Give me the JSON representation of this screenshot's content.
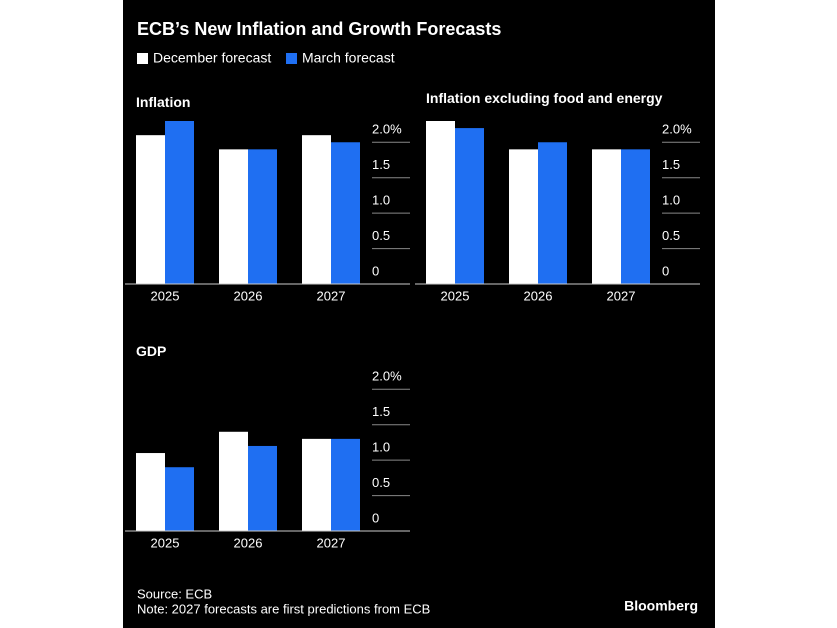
{
  "title": "ECB’s New Inflation and Growth Forecasts",
  "source": "Source: ECB",
  "note": "Note: 2027 forecasts are first predictions from ECB",
  "brand": "Bloomberg",
  "chart_data": [
    {
      "type": "bar",
      "title": "Inflation",
      "categories": [
        "2025",
        "2026",
        "2027"
      ],
      "series": [
        {
          "name": "December forecast",
          "color": "#ffffff",
          "values": [
            2.1,
            1.9,
            2.1
          ]
        },
        {
          "name": "March forecast",
          "color": "#1f6ff2",
          "values": [
            2.3,
            1.9,
            2.0
          ]
        }
      ],
      "ylim": [
        0,
        2.3
      ],
      "yticks": [
        0,
        0.5,
        {
          "value": 1,
          "label": "1.0"
        },
        1.5,
        {
          "value": 2,
          "label": "2.0%"
        }
      ]
    },
    {
      "type": "bar",
      "title": "Inflation excluding food and energy",
      "categories": [
        "2025",
        "2026",
        "2027"
      ],
      "series": [
        {
          "name": "December forecast",
          "color": "#ffffff",
          "values": [
            2.3,
            1.9,
            1.9
          ]
        },
        {
          "name": "March forecast",
          "color": "#1f6ff2",
          "values": [
            2.2,
            2.0,
            1.9
          ]
        }
      ],
      "ylim": [
        0,
        2.3
      ],
      "yticks": [
        0,
        0.5,
        {
          "value": 1,
          "label": "1.0"
        },
        1.5,
        {
          "value": 2,
          "label": "2.0%"
        }
      ]
    },
    {
      "type": "bar",
      "title": "GDP",
      "categories": [
        "2025",
        "2026",
        "2027"
      ],
      "series": [
        {
          "name": "December forecast",
          "color": "#ffffff",
          "values": [
            1.1,
            1.4,
            1.3
          ]
        },
        {
          "name": "March forecast",
          "color": "#1f6ff2",
          "values": [
            0.9,
            1.2,
            1.3
          ]
        }
      ],
      "ylim": [
        0,
        2.3
      ],
      "yticks": [
        0,
        0.5,
        {
          "value": 1,
          "label": "1.0"
        },
        1.5,
        {
          "value": 2,
          "label": "2.0%"
        }
      ]
    }
  ]
}
